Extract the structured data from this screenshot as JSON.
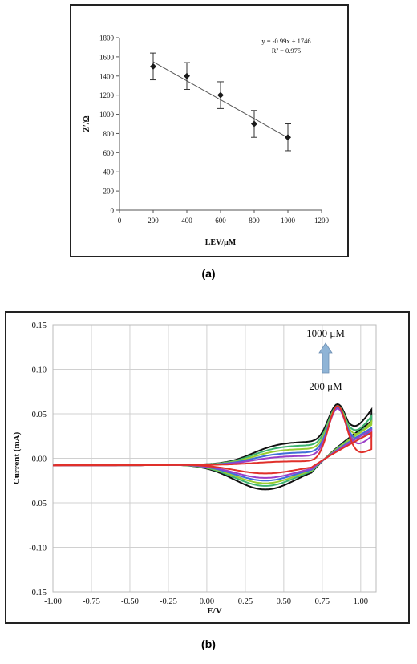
{
  "chart_data": [
    {
      "type": "scatter",
      "caption": "(a)",
      "xlabel": "LEV/μM",
      "ylabel": "Z′/Ω",
      "xlim": [
        0,
        1200
      ],
      "ylim": [
        0,
        1800
      ],
      "xticks": [
        "0",
        "200",
        "400",
        "600",
        "800",
        "1000",
        "1200"
      ],
      "yticks": [
        "0",
        "200",
        "400",
        "600",
        "800",
        "1000",
        "1200",
        "1400",
        "1600",
        "1800"
      ],
      "points": [
        {
          "x": 200,
          "y": 1500,
          "err": 140
        },
        {
          "x": 400,
          "y": 1400,
          "err": 140
        },
        {
          "x": 600,
          "y": 1200,
          "err": 140
        },
        {
          "x": 800,
          "y": 900,
          "err": 140
        },
        {
          "x": 1000,
          "y": 760,
          "err": 140
        }
      ],
      "trendline": {
        "slope": -0.99,
        "intercept": 1746,
        "x_range": [
          200,
          1000
        ]
      },
      "annotations": [
        "y = -0.99x + 1746",
        "R² = 0.975"
      ],
      "grid": false,
      "marker_color": "#1a1a1a"
    },
    {
      "type": "line",
      "caption": "(b)",
      "xlabel": "E/V",
      "ylabel": "Current (mA)",
      "xlim": [
        -1.0,
        1.1
      ],
      "ylim": [
        -0.15,
        0.15
      ],
      "xticks": [
        "-1.00",
        "-0.75",
        "-0.50",
        "-0.25",
        "0.00",
        "0.25",
        "0.50",
        "0.75",
        "1.00"
      ],
      "yticks": [
        "0.15",
        "0.10",
        "0.05",
        "0.00",
        "-0.05",
        "-0.10",
        "-0.15"
      ],
      "grid": true,
      "annotations": [
        "1000 μM",
        "200 μM"
      ],
      "arrow_color": "#8fb4d6",
      "series": [
        {
          "color": "#111111",
          "peak": 0.068,
          "tail": 0.09,
          "mid": 0.026,
          "rev_low": -0.028
        },
        {
          "color": "#3cb371",
          "peak": 0.066,
          "tail": 0.085,
          "mid": 0.022,
          "rev_low": -0.024
        },
        {
          "color": "#9acd32",
          "peak": 0.065,
          "tail": 0.082,
          "mid": 0.018,
          "rev_low": -0.021
        },
        {
          "color": "#3f6fd8",
          "peak": 0.064,
          "tail": 0.076,
          "mid": 0.014,
          "rev_low": -0.018
        },
        {
          "color": "#9b3fc8",
          "peak": 0.063,
          "tail": 0.072,
          "mid": 0.01,
          "rev_low": -0.015
        },
        {
          "color": "#e0302a",
          "peak": 0.066,
          "tail": 0.066,
          "mid": 0.004,
          "rev_low": -0.01
        }
      ]
    }
  ]
}
